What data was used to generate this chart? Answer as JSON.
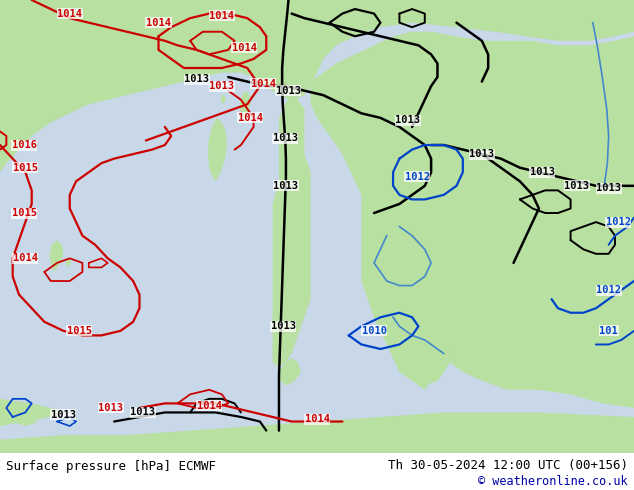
{
  "title_left": "Surface pressure [hPa] ECMWF",
  "title_right": "Th 30-05-2024 12:00 UTC (00+156)",
  "copyright": "© weatheronline.co.uk",
  "bg_color": "#c0d8c0",
  "sea_color": "#c8d8e8",
  "land_color": "#b8e0a0",
  "figsize": [
    6.34,
    4.9
  ],
  "dpi": 100
}
